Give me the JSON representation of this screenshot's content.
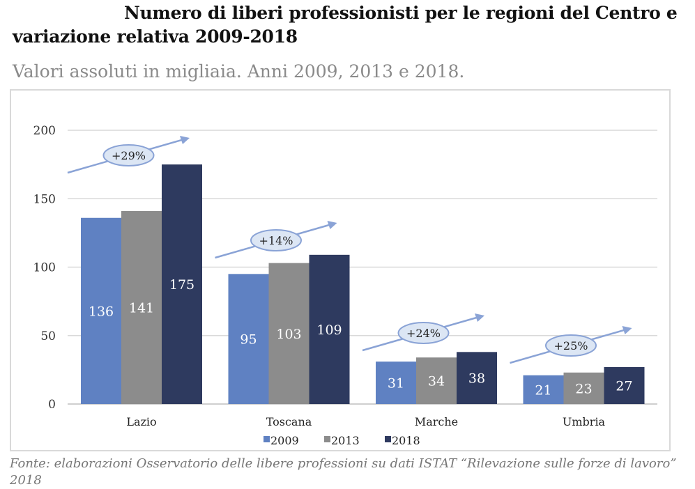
{
  "title": "Numero di liberi professionisti per le regioni del Centro e variazione relativa 2009-2018",
  "subtitle": "Valori assoluti in migliaia. Anni 2009, 2013 e 2018.",
  "source": "Fonte: elaborazioni Osservatorio delle libere professioni su dati ISTAT “Rilevazione sulle forze di lavoro” 2018",
  "chart_data": {
    "type": "bar",
    "categories": [
      "Lazio",
      "Toscana",
      "Marche",
      "Umbria"
    ],
    "series": [
      {
        "name": "2009",
        "color": "#5f81c2",
        "values": [
          136,
          95,
          31,
          21
        ]
      },
      {
        "name": "2013",
        "color": "#8c8c8c",
        "values": [
          141,
          103,
          34,
          23
        ]
      },
      {
        "name": "2018",
        "color": "#2e3a5f",
        "values": [
          175,
          109,
          38,
          27
        ]
      }
    ],
    "variations": [
      "+29%",
      "+14%",
      "+24%",
      "+25%"
    ],
    "ylim": [
      0,
      200
    ],
    "yticks": [
      0,
      50,
      100,
      150,
      200
    ],
    "grid": true,
    "legend": "bottom",
    "xlabel": "",
    "ylabel": ""
  }
}
